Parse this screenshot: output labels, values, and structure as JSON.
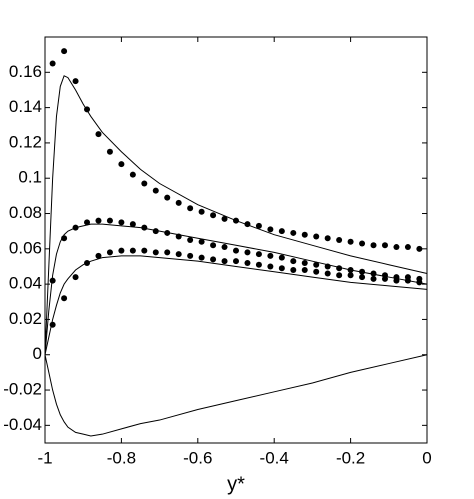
{
  "chart_data": {
    "type": "scatter-line",
    "x_label": "y*",
    "xlim": [
      -1,
      0
    ],
    "xticks": [
      -1,
      -0.8,
      -0.6,
      -0.4,
      -0.2,
      0
    ],
    "ylim": [
      -0.05,
      0.18
    ],
    "yticks": [
      -0.04,
      -0.02,
      0,
      0.02,
      0.04,
      0.06,
      0.08,
      0.1,
      0.12,
      0.14,
      0.16
    ],
    "color": "#000000",
    "series": [
      {
        "mode": "markers",
        "x": [
          -0.98,
          -0.95,
          -0.92,
          -0.89,
          -0.86,
          -0.83,
          -0.8,
          -0.77,
          -0.74,
          -0.71,
          -0.68,
          -0.65,
          -0.62,
          -0.59,
          -0.56,
          -0.53,
          -0.5,
          -0.47,
          -0.44,
          -0.41,
          -0.38,
          -0.35,
          -0.32,
          -0.29,
          -0.26,
          -0.23,
          -0.2,
          -0.17,
          -0.14,
          -0.11,
          -0.08,
          -0.05,
          -0.02
        ],
        "values": [
          0.165,
          0.172,
          0.155,
          0.139,
          0.125,
          0.115,
          0.108,
          0.102,
          0.097,
          0.093,
          0.089,
          0.086,
          0.083,
          0.081,
          0.079,
          0.077,
          0.076,
          0.074,
          0.073,
          0.071,
          0.07,
          0.069,
          0.068,
          0.067,
          0.066,
          0.065,
          0.064,
          0.063,
          0.062,
          0.062,
          0.061,
          0.061,
          0.06
        ]
      },
      {
        "mode": "markers",
        "x": [
          -0.98,
          -0.95,
          -0.92,
          -0.89,
          -0.86,
          -0.83,
          -0.8,
          -0.77,
          -0.74,
          -0.71,
          -0.68,
          -0.65,
          -0.62,
          -0.59,
          -0.56,
          -0.53,
          -0.5,
          -0.47,
          -0.44,
          -0.41,
          -0.38,
          -0.35,
          -0.32,
          -0.29,
          -0.26,
          -0.23,
          -0.2,
          -0.17,
          -0.14,
          -0.11,
          -0.08,
          -0.05,
          -0.02
        ],
        "values": [
          0.042,
          0.066,
          0.072,
          0.075,
          0.076,
          0.076,
          0.075,
          0.074,
          0.072,
          0.07,
          0.069,
          0.067,
          0.065,
          0.064,
          0.062,
          0.061,
          0.059,
          0.058,
          0.057,
          0.056,
          0.055,
          0.053,
          0.052,
          0.051,
          0.05,
          0.049,
          0.048,
          0.047,
          0.046,
          0.045,
          0.044,
          0.044,
          0.043
        ]
      },
      {
        "mode": "markers",
        "x": [
          -0.98,
          -0.95,
          -0.92,
          -0.89,
          -0.86,
          -0.83,
          -0.8,
          -0.77,
          -0.74,
          -0.71,
          -0.68,
          -0.65,
          -0.62,
          -0.59,
          -0.56,
          -0.53,
          -0.5,
          -0.47,
          -0.44,
          -0.41,
          -0.38,
          -0.35,
          -0.32,
          -0.29,
          -0.26,
          -0.23,
          -0.2,
          -0.17,
          -0.14,
          -0.11,
          -0.08,
          -0.05,
          -0.02
        ],
        "values": [
          0.017,
          0.032,
          0.044,
          0.052,
          0.056,
          0.058,
          0.059,
          0.059,
          0.059,
          0.058,
          0.058,
          0.057,
          0.056,
          0.055,
          0.054,
          0.053,
          0.053,
          0.052,
          0.051,
          0.05,
          0.049,
          0.048,
          0.048,
          0.047,
          0.046,
          0.045,
          0.045,
          0.044,
          0.043,
          0.043,
          0.042,
          0.042,
          0.041
        ]
      },
      {
        "mode": "line",
        "x": [
          -1,
          -0.99,
          -0.98,
          -0.97,
          -0.96,
          -0.95,
          -0.94,
          -0.92,
          -0.9,
          -0.88,
          -0.85,
          -0.8,
          -0.75,
          -0.7,
          -0.6,
          -0.5,
          -0.4,
          -0.3,
          -0.2,
          -0.1,
          0
        ],
        "values": [
          0,
          0.05,
          0.1,
          0.135,
          0.152,
          0.158,
          0.157,
          0.15,
          0.142,
          0.135,
          0.126,
          0.115,
          0.105,
          0.097,
          0.085,
          0.076,
          0.068,
          0.062,
          0.056,
          0.051,
          0.046
        ]
      },
      {
        "mode": "line",
        "x": [
          -1,
          -0.99,
          -0.98,
          -0.97,
          -0.96,
          -0.95,
          -0.94,
          -0.92,
          -0.9,
          -0.88,
          -0.85,
          -0.8,
          -0.75,
          -0.7,
          -0.6,
          -0.5,
          -0.4,
          -0.3,
          -0.2,
          -0.1,
          0
        ],
        "values": [
          0,
          0.025,
          0.045,
          0.057,
          0.064,
          0.068,
          0.07,
          0.072,
          0.073,
          0.074,
          0.074,
          0.073,
          0.072,
          0.07,
          0.066,
          0.062,
          0.058,
          0.053,
          0.048,
          0.044,
          0.04
        ]
      },
      {
        "mode": "line",
        "x": [
          -1,
          -0.99,
          -0.98,
          -0.97,
          -0.96,
          -0.95,
          -0.94,
          -0.92,
          -0.9,
          -0.88,
          -0.85,
          -0.8,
          -0.75,
          -0.7,
          -0.6,
          -0.5,
          -0.4,
          -0.3,
          -0.2,
          -0.1,
          0
        ],
        "values": [
          0,
          0.01,
          0.02,
          0.028,
          0.035,
          0.04,
          0.043,
          0.048,
          0.051,
          0.053,
          0.055,
          0.056,
          0.056,
          0.055,
          0.053,
          0.05,
          0.047,
          0.044,
          0.041,
          0.039,
          0.037
        ]
      },
      {
        "mode": "line",
        "x": [
          -1,
          -0.99,
          -0.98,
          -0.97,
          -0.96,
          -0.95,
          -0.94,
          -0.92,
          -0.9,
          -0.88,
          -0.85,
          -0.8,
          -0.75,
          -0.7,
          -0.6,
          -0.5,
          -0.4,
          -0.3,
          -0.2,
          -0.1,
          0
        ],
        "values": [
          0,
          -0.01,
          -0.02,
          -0.028,
          -0.034,
          -0.038,
          -0.041,
          -0.044,
          -0.045,
          -0.046,
          -0.045,
          -0.042,
          -0.039,
          -0.037,
          -0.031,
          -0.026,
          -0.021,
          -0.016,
          -0.01,
          -0.005,
          0
        ]
      }
    ]
  }
}
